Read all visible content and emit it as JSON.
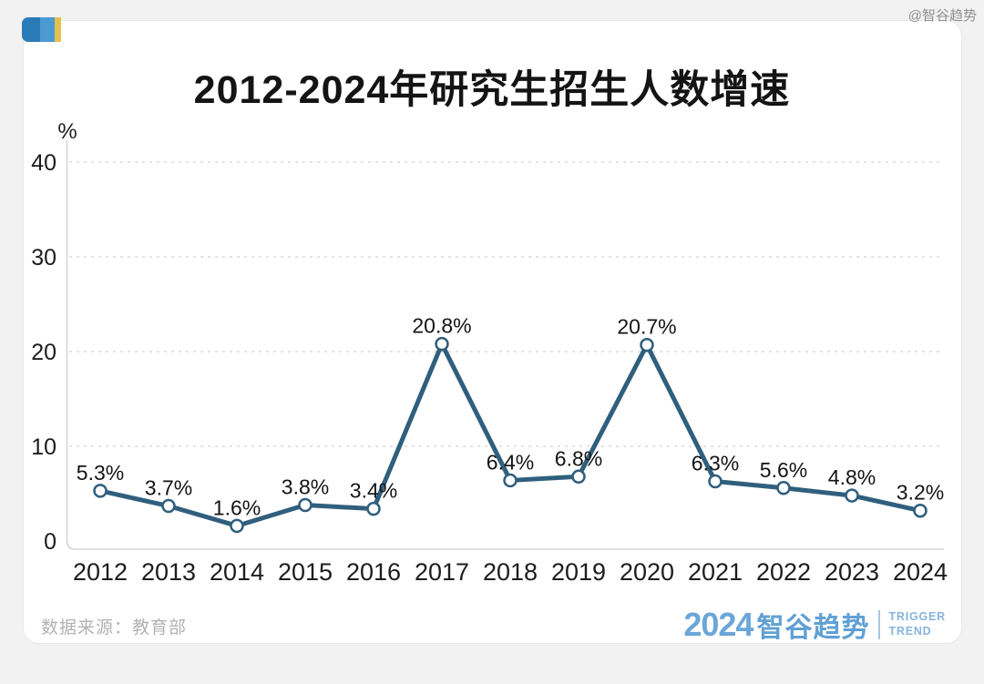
{
  "page": {
    "watermark": "@智谷趋势",
    "source": "数据来源：教育部",
    "brand": {
      "year": "2024",
      "name": "智谷趋势",
      "tagline_line1": "TRIGGER",
      "tagline_line2": "TREND"
    }
  },
  "chart_data": {
    "type": "line",
    "title": "2012-2024年研究生招生人数增速",
    "unit_label": "%",
    "categories": [
      "2012",
      "2013",
      "2014",
      "2015",
      "2016",
      "2017",
      "2018",
      "2019",
      "2020",
      "2021",
      "2022",
      "2023",
      "2024"
    ],
    "values": [
      5.3,
      3.7,
      1.6,
      3.8,
      3.4,
      20.8,
      6.4,
      6.8,
      20.7,
      6.3,
      5.6,
      4.8,
      3.2
    ],
    "data_labels": [
      "5.3%",
      "3.7%",
      "1.6%",
      "3.8%",
      "3.4%",
      "20.8%",
      "6.4%",
      "6.8%",
      "20.7%",
      "6.3%",
      "5.6%",
      "4.8%",
      "3.2%"
    ],
    "y_ticks": [
      0,
      10,
      20,
      30,
      40
    ],
    "ylim": [
      0,
      42
    ],
    "grid": "dashed-horizontal",
    "legend": "none",
    "line_color": "#305F7E",
    "marker": "open-circle",
    "marker_fill": "#ffffff",
    "grid_color": "#dcdcdc",
    "axis_color": "#d6d6d6",
    "tick_text_color": "#1d1d1d",
    "label_text_color": "#141414"
  },
  "colors": {
    "icon_dark_blue": "#2b7ab8",
    "icon_light_blue": "#4d9ad4",
    "icon_yellow": "#e4c14c",
    "brand_blue": "#6ba6d8",
    "card_bg": "#ffffff",
    "page_bg": "#f2f2f2"
  }
}
